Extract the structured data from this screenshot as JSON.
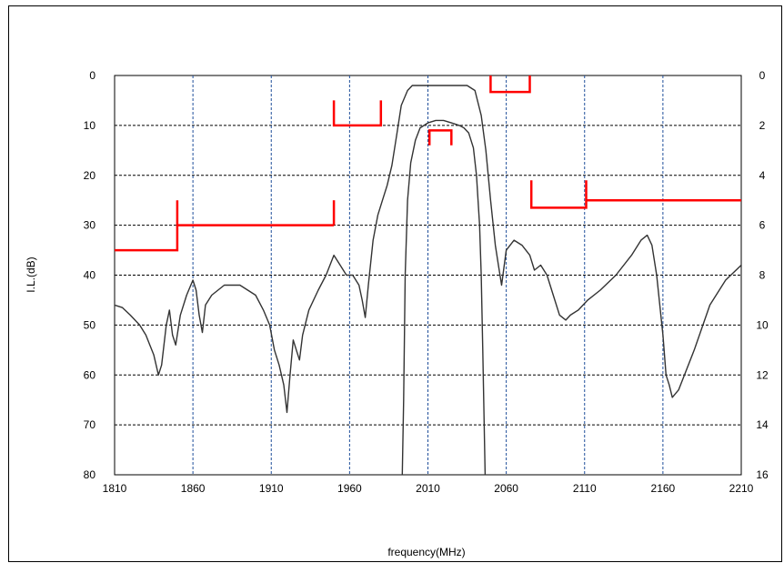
{
  "chart_data": {
    "type": "line",
    "title": "",
    "xlabel": "frequency(MHz)",
    "ylabel": "I.L.(dB)",
    "xlim": [
      1810,
      2210
    ],
    "ylim": [
      80,
      0
    ],
    "y2lim": [
      16,
      0
    ],
    "grid": true,
    "x_ticks": [
      "1810",
      "1860",
      "1910",
      "1960",
      "2010",
      "2060",
      "2110",
      "2160",
      "2210"
    ],
    "y_ticks": [
      "0",
      "10",
      "20",
      "30",
      "40",
      "50",
      "60",
      "70",
      "80"
    ],
    "y2_ticks": [
      "0",
      "2",
      "4",
      "6",
      "8",
      "10",
      "12",
      "14",
      "16"
    ],
    "colors": {
      "curve": "#333333",
      "spec": "#ff0000",
      "grid_h": "#000000",
      "grid_v": "#1f4e9a"
    },
    "series": [
      {
        "axis": "left",
        "x": [
          1810,
          1815,
          1820,
          1826,
          1830,
          1835,
          1838,
          1840,
          1843,
          1845,
          1847,
          1849,
          1852,
          1856,
          1860,
          1862,
          1864,
          1866,
          1868,
          1872,
          1880,
          1890,
          1900,
          1905,
          1909,
          1912,
          1915,
          1918,
          1920,
          1922,
          1924,
          1926,
          1928,
          1930,
          1934,
          1940,
          1945,
          1950,
          1954,
          1958,
          1962,
          1966,
          1968,
          1970,
          1972,
          1975,
          1978,
          1981,
          1984,
          1987,
          1990,
          1993,
          1997,
          2000,
          2005,
          2010,
          2015,
          2020,
          2025,
          2030,
          2035,
          2040,
          2044,
          2047,
          2050,
          2053,
          2055,
          2057,
          2060,
          2065,
          2070,
          2075,
          2078,
          2082,
          2086,
          2090,
          2094,
          2098,
          2101,
          2106,
          2112,
          2120,
          2130,
          2140,
          2146,
          2150,
          2153,
          2156,
          2160,
          2162,
          2164,
          2166,
          2170,
          2180,
          2190,
          2200,
          2210
        ],
        "y": [
          46,
          46.5,
          48,
          50,
          52,
          56,
          60,
          58,
          50,
          47,
          52,
          54,
          48,
          44,
          41,
          43,
          48,
          51.5,
          46,
          44,
          42,
          42,
          44,
          47,
          50,
          55,
          58,
          62,
          67.5,
          60,
          53,
          55,
          57,
          52,
          47,
          43,
          40,
          36,
          38,
          40,
          40,
          42,
          45,
          48.5,
          42,
          33,
          28,
          25,
          22,
          18,
          12,
          6,
          3,
          2,
          2,
          2,
          2,
          2,
          2,
          2,
          2,
          3,
          8,
          15,
          25,
          34,
          38,
          42,
          35,
          33,
          34,
          36,
          39,
          38,
          40,
          44,
          48,
          49,
          48,
          47,
          45,
          43,
          40,
          36,
          33,
          32,
          34,
          40,
          52,
          60,
          62,
          64.5,
          63,
          55,
          46,
          41,
          38
        ]
      },
      {
        "axis": "right",
        "x": [
          1993.6,
          1994.5,
          1995.5,
          1997,
          1999,
          2002,
          2005,
          2010,
          2015,
          2020,
          2025,
          2030,
          2033,
          2036,
          2039,
          2041,
          2043,
          2044,
          2045,
          2046.5
        ],
        "y": [
          16,
          13,
          8,
          5,
          3.5,
          2.6,
          2.1,
          1.9,
          1.8,
          1.8,
          1.9,
          2.0,
          2.1,
          2.3,
          2.9,
          4,
          6,
          8,
          11,
          16
        ]
      }
    ],
    "spec_masks": [
      {
        "x": [
          1810,
          1850,
          1850
        ],
        "y": [
          35,
          35,
          25
        ]
      },
      {
        "x": [
          1850,
          1950
        ],
        "y": [
          30,
          30
        ]
      },
      {
        "x": [
          1950,
          1950
        ],
        "y": [
          25,
          30
        ]
      },
      {
        "x": [
          1950,
          1950,
          1980,
          1980
        ],
        "y": [
          5,
          10,
          10,
          5
        ]
      },
      {
        "x": [
          2011,
          2011,
          2025,
          2025
        ],
        "y": [
          14,
          11,
          11,
          14
        ]
      },
      {
        "x": [
          2050,
          2050,
          2075,
          2075
        ],
        "y": [
          0,
          3.3,
          3.3,
          0
        ]
      },
      {
        "x": [
          2076,
          2076,
          2111,
          2111
        ],
        "y": [
          21,
          26.5,
          26.5,
          21
        ]
      },
      {
        "x": [
          2111,
          2210
        ],
        "y": [
          25,
          25
        ]
      }
    ]
  }
}
